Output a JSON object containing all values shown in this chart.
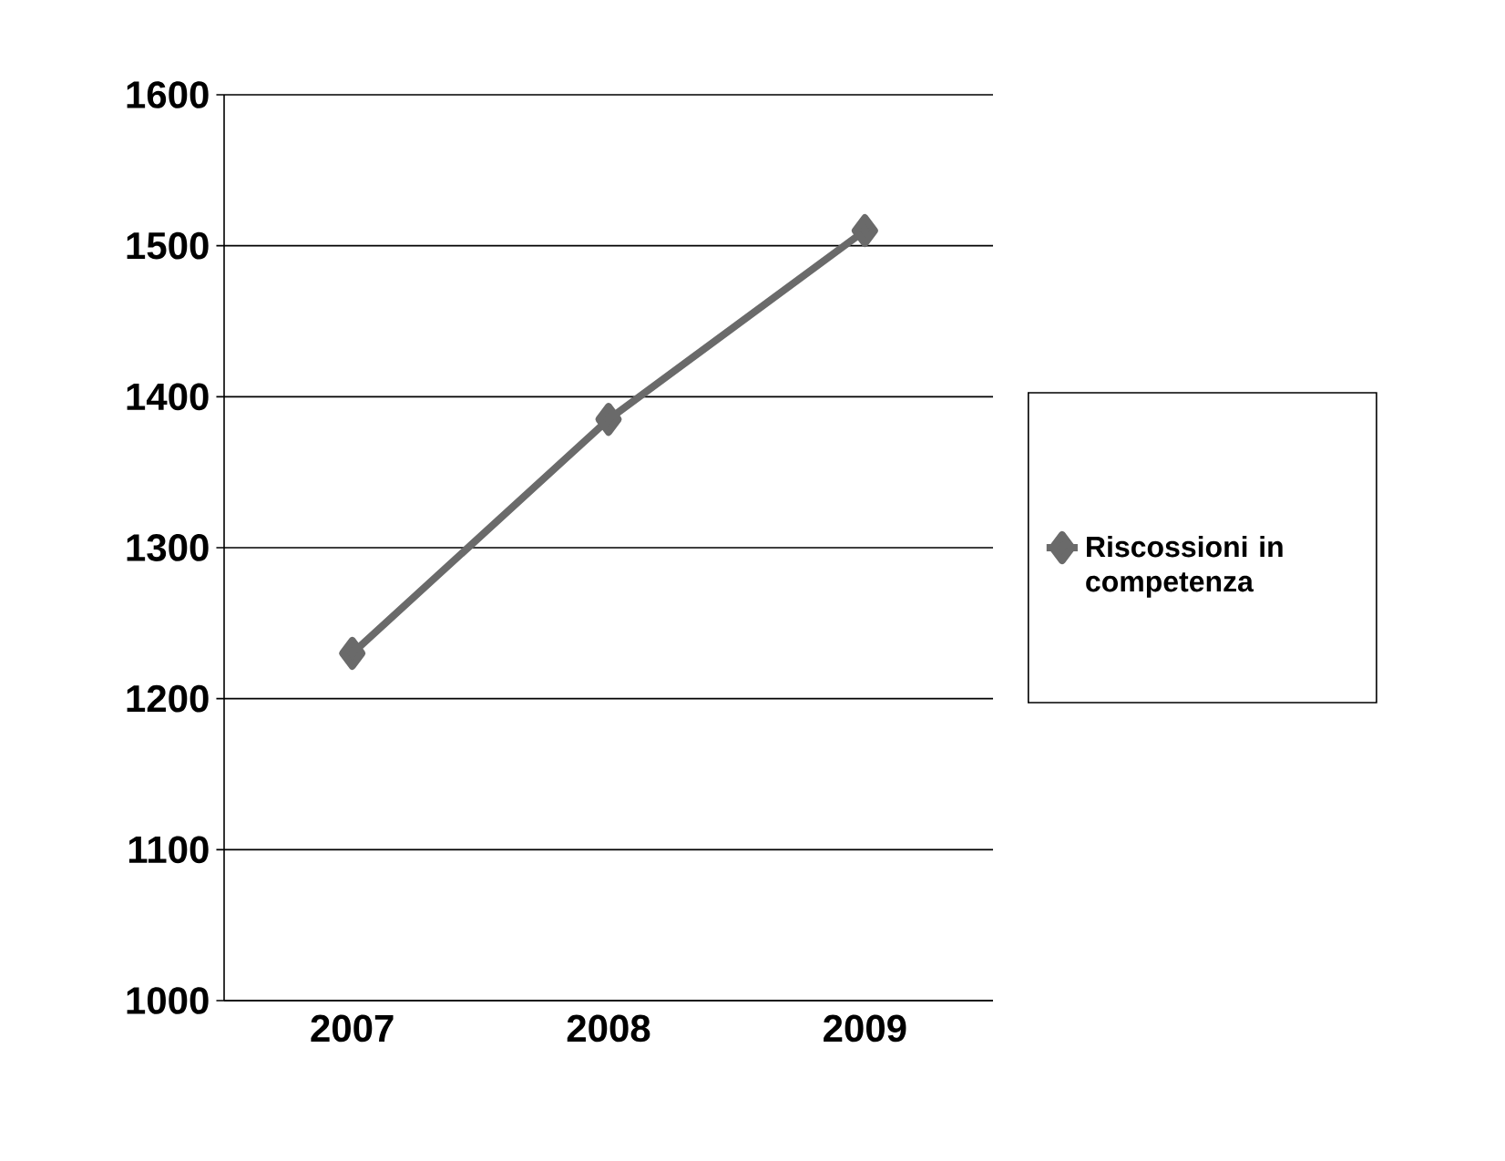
{
  "chart_data": {
    "type": "line",
    "categories": [
      "2007",
      "2008",
      "2009"
    ],
    "series": [
      {
        "name": "Riscossioni in competenza",
        "color": "#6a6a6a",
        "values": [
          1230,
          1385,
          1510
        ]
      }
    ],
    "ylim": [
      1000,
      1600
    ],
    "yticks": [
      1000,
      1100,
      1200,
      1300,
      1400,
      1500,
      1600
    ],
    "grid": "y",
    "legend": "right",
    "marker": "diamond",
    "line_style": "solid"
  }
}
